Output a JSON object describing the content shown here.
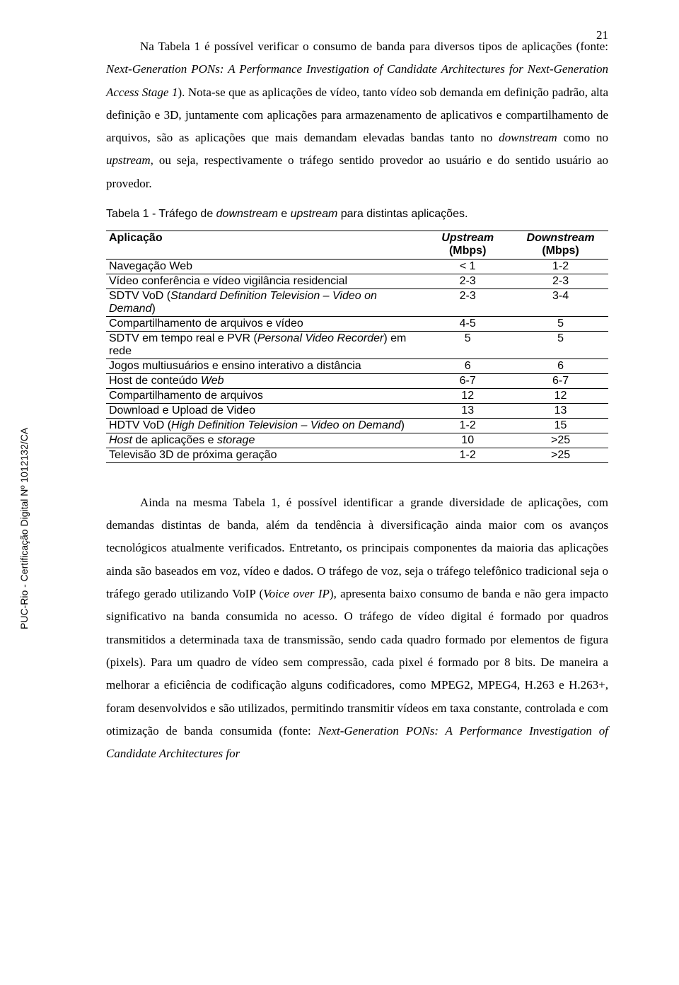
{
  "page_number": "21",
  "side_label": "PUC-Rio - Certificação Digital Nº 1012132/CA",
  "paragraph1_parts": {
    "p1": "Na Tabela 1 é possível verificar o consumo de banda para diversos tipos de aplicações (fonte: ",
    "p2": "Next-Generation PONs: A Performance Investigation of Candidate Architectures for Next-Generation Access Stage 1",
    "p3": "). Nota-se que as aplicações de vídeo, tanto vídeo sob demanda em definição padrão, alta definição e 3D, juntamente com aplicações para armazenamento de aplicativos e compartilhamento de arquivos, são as aplicações que mais demandam elevadas bandas tanto no ",
    "p4": "downstream",
    "p5": " como no ",
    "p6": "upstream",
    "p7": ", ou seja, respectivamente o tráfego sentido provedor ao usuário e do sentido usuário ao provedor."
  },
  "caption": {
    "c1": "Tabela 1 - Tráfego de ",
    "c2": "downstream",
    "c3": " e ",
    "c4": "upstream",
    "c5": " para distintas aplicações."
  },
  "table": {
    "headers": {
      "h0": "Aplicação",
      "h1a": "Upstream",
      "h1b": "(Mbps)",
      "h2a": "Downstream",
      "h2b": "(Mbps)"
    },
    "rows": [
      {
        "app_parts": [
          {
            "t": "Navegação Web",
            "i": false
          }
        ],
        "up": "< 1",
        "down": "1-2"
      },
      {
        "app_parts": [
          {
            "t": "Vídeo conferência e vídeo vigilância residencial",
            "i": false
          }
        ],
        "up": "2-3",
        "down": "2-3"
      },
      {
        "app_parts": [
          {
            "t": "SDTV VoD (",
            "i": false
          },
          {
            "t": "Standard Definition Television – Video on Demand",
            "i": true
          },
          {
            "t": ")",
            "i": false
          }
        ],
        "up": "2-3",
        "down": "3-4"
      },
      {
        "app_parts": [
          {
            "t": "Compartilhamento de arquivos e vídeo",
            "i": false
          }
        ],
        "up": "4-5",
        "down": "5"
      },
      {
        "app_parts": [
          {
            "t": "SDTV em tempo real e PVR (",
            "i": false
          },
          {
            "t": "Personal Video Recorder",
            "i": true
          },
          {
            "t": ") em rede",
            "i": false
          }
        ],
        "up": "5",
        "down": "5"
      },
      {
        "app_parts": [
          {
            "t": "Jogos multiusuários e ensino interativo a distância",
            "i": false
          }
        ],
        "up": "6",
        "down": "6"
      },
      {
        "app_parts": [
          {
            "t": "Host de conteúdo ",
            "i": false
          },
          {
            "t": "Web",
            "i": true
          }
        ],
        "up": "6-7",
        "down": "6-7"
      },
      {
        "app_parts": [
          {
            "t": "Compartilhamento de arquivos",
            "i": false
          }
        ],
        "up": "12",
        "down": "12"
      },
      {
        "app_parts": [
          {
            "t": "Download e Upload de Video",
            "i": false
          }
        ],
        "up": "13",
        "down": "13"
      },
      {
        "app_parts": [
          {
            "t": "HDTV VoD (",
            "i": false
          },
          {
            "t": "High Definition Television – Video on Demand",
            "i": true
          },
          {
            "t": ")",
            "i": false
          }
        ],
        "up": "1-2",
        "down": "15"
      },
      {
        "app_parts": [
          {
            "t": "Host",
            "i": true
          },
          {
            "t": " de aplicações e ",
            "i": false
          },
          {
            "t": "storage",
            "i": true
          }
        ],
        "up": "10",
        "down": ">25"
      },
      {
        "app_parts": [
          {
            "t": "Televisão 3D de próxima geração",
            "i": false
          }
        ],
        "up": "1-2",
        "down": ">25"
      }
    ]
  },
  "paragraph2_parts": {
    "p1": "Ainda na mesma Tabela 1, é possível identificar a grande diversidade de aplicações, com demandas distintas de banda, além da tendência à diversificação ainda maior com os avanços tecnológicos atualmente verificados. Entretanto, os principais componentes da maioria das aplicações ainda são baseados em voz, vídeo e dados. O tráfego de voz, seja o tráfego telefônico tradicional seja o tráfego gerado utilizando VoIP (",
    "p2": "Voice over IP",
    "p3": "), apresenta baixo consumo de banda e não gera impacto significativo na banda consumida no acesso. O tráfego de vídeo digital é formado por quadros transmitidos a determinada taxa de transmissão, sendo cada quadro formado por elementos de figura (pixels). Para um quadro de vídeo sem compressão, cada pixel é formado por 8 bits. De maneira a melhorar a eficiência de codificação alguns codificadores, como MPEG2, MPEG4, H.263 e H.263+, foram desenvolvidos e são utilizados, permitindo transmitir vídeos em taxa constante, controlada e com otimização de banda consumida (fonte: ",
    "p4": "Next-Generation PONs: A Performance Investigation of Candidate Architectures for"
  }
}
